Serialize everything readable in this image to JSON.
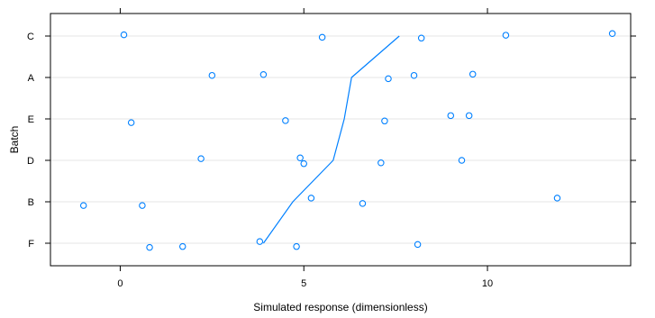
{
  "chart_data": {
    "type": "scatter",
    "xlabel": "Simulated response (dimensionless)",
    "ylabel": "Batch",
    "categories": [
      "F",
      "B",
      "D",
      "E",
      "A",
      "C"
    ],
    "xticks": [
      0,
      5,
      10
    ],
    "xlim": [
      -1.9,
      13.9
    ],
    "grid": true,
    "points": [
      {
        "batch": "C",
        "x": 0.1,
        "jitter": 0.03
      },
      {
        "batch": "C",
        "x": 5.5,
        "jitter": -0.03
      },
      {
        "batch": "C",
        "x": 8.2,
        "jitter": -0.05
      },
      {
        "batch": "C",
        "x": 10.5,
        "jitter": 0.02
      },
      {
        "batch": "C",
        "x": 13.4,
        "jitter": 0.06
      },
      {
        "batch": "A",
        "x": 2.5,
        "jitter": 0.05
      },
      {
        "batch": "A",
        "x": 3.9,
        "jitter": 0.07
      },
      {
        "batch": "A",
        "x": 7.3,
        "jitter": -0.03
      },
      {
        "batch": "A",
        "x": 8.0,
        "jitter": 0.05
      },
      {
        "batch": "A",
        "x": 9.6,
        "jitter": 0.08
      },
      {
        "batch": "E",
        "x": 0.3,
        "jitter": -0.09
      },
      {
        "batch": "E",
        "x": 4.5,
        "jitter": -0.04
      },
      {
        "batch": "E",
        "x": 7.2,
        "jitter": -0.05
      },
      {
        "batch": "E",
        "x": 9.0,
        "jitter": 0.08
      },
      {
        "batch": "E",
        "x": 9.5,
        "jitter": 0.08
      },
      {
        "batch": "D",
        "x": 2.2,
        "jitter": 0.04
      },
      {
        "batch": "D",
        "x": 4.9,
        "jitter": 0.06
      },
      {
        "batch": "D",
        "x": 5.0,
        "jitter": -0.08
      },
      {
        "batch": "D",
        "x": 7.1,
        "jitter": -0.06
      },
      {
        "batch": "D",
        "x": 9.3,
        "jitter": 0.0
      },
      {
        "batch": "B",
        "x": -1.0,
        "jitter": -0.09
      },
      {
        "batch": "B",
        "x": 0.6,
        "jitter": -0.09
      },
      {
        "batch": "B",
        "x": 5.2,
        "jitter": 0.09
      },
      {
        "batch": "B",
        "x": 6.6,
        "jitter": -0.04
      },
      {
        "batch": "B",
        "x": 11.9,
        "jitter": 0.09
      },
      {
        "batch": "F",
        "x": 0.8,
        "jitter": -0.1
      },
      {
        "batch": "F",
        "x": 1.7,
        "jitter": -0.08
      },
      {
        "batch": "F",
        "x": 3.8,
        "jitter": 0.04
      },
      {
        "batch": "F",
        "x": 4.8,
        "jitter": -0.08
      },
      {
        "batch": "F",
        "x": 8.1,
        "jitter": -0.03
      }
    ],
    "line": [
      {
        "x": 3.9,
        "y": "F"
      },
      {
        "x": 4.7,
        "y": "B"
      },
      {
        "x": 5.8,
        "y": "D"
      },
      {
        "x": 6.1,
        "y": "E"
      },
      {
        "x": 6.3,
        "y": "A"
      },
      {
        "x": 7.6,
        "y": "C"
      }
    ],
    "colors": {
      "point": "#0080ff",
      "line": "#0080ff",
      "grid": "#e6e6e6",
      "axis": "#000000"
    }
  }
}
